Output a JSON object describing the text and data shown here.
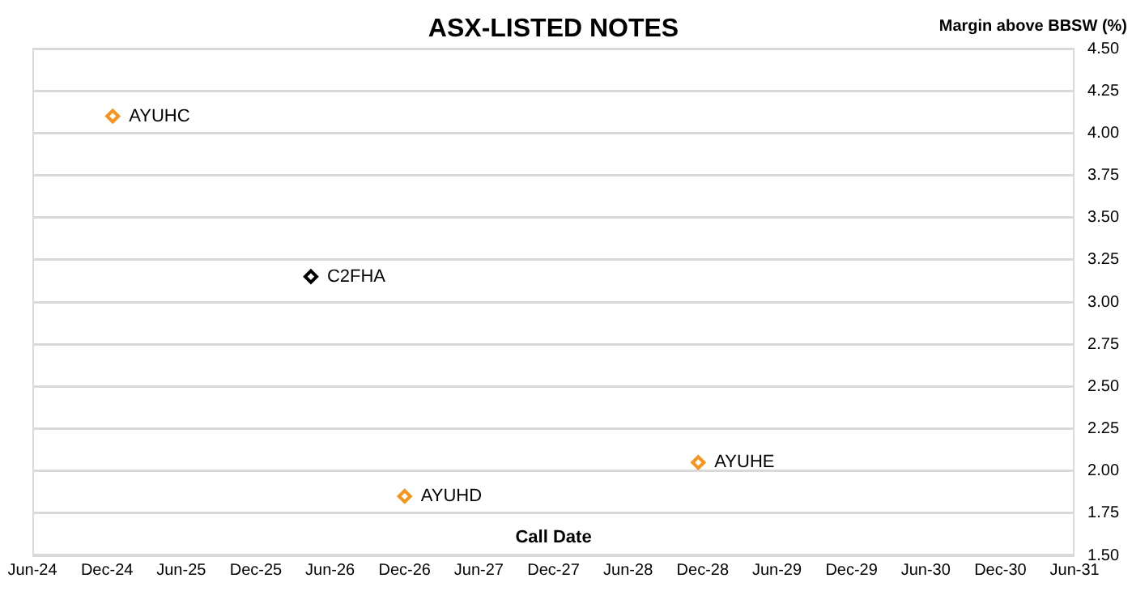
{
  "chart_data": {
    "type": "scatter",
    "title": "ASX-LISTED NOTES",
    "xlabel": "Call Date",
    "ylabel": "Margin above BBSW (%)",
    "series": [
      {
        "name": "AYUHC",
        "color": "#f7941d",
        "x": [
          "2024-12-15"
        ],
        "values": [
          4.1
        ]
      },
      {
        "name": "C2FHA",
        "color": "#000000",
        "x": [
          "2026-04-15"
        ],
        "values": [
          3.15
        ]
      },
      {
        "name": "AYUHD",
        "color": "#f7941d",
        "x": [
          "2026-12-01"
        ],
        "values": [
          1.85
        ]
      },
      {
        "name": "AYUHE",
        "color": "#f7941d",
        "x": [
          "2028-11-20"
        ],
        "values": [
          2.05
        ]
      }
    ],
    "xlim": [
      "2024-06-01",
      "2031-06-01"
    ],
    "xticks": [
      {
        "value": "2024-06-01",
        "label": "Jun-24"
      },
      {
        "value": "2024-12-01",
        "label": "Dec-24"
      },
      {
        "value": "2025-06-01",
        "label": "Jun-25"
      },
      {
        "value": "2025-12-01",
        "label": "Dec-25"
      },
      {
        "value": "2026-06-01",
        "label": "Jun-26"
      },
      {
        "value": "2026-12-01",
        "label": "Dec-26"
      },
      {
        "value": "2027-06-01",
        "label": "Jun-27"
      },
      {
        "value": "2027-12-01",
        "label": "Dec-27"
      },
      {
        "value": "2028-06-01",
        "label": "Jun-28"
      },
      {
        "value": "2028-12-01",
        "label": "Dec-28"
      },
      {
        "value": "2029-06-01",
        "label": "Jun-29"
      },
      {
        "value": "2029-12-01",
        "label": "Dec-29"
      },
      {
        "value": "2030-06-01",
        "label": "Jun-30"
      },
      {
        "value": "2030-12-01",
        "label": "Dec-30"
      },
      {
        "value": "2031-06-01",
        "label": "Jun-31"
      }
    ],
    "ylim": [
      1.5,
      4.5
    ],
    "yticks": [
      {
        "value": 1.5,
        "label": "1.50"
      },
      {
        "value": 1.75,
        "label": "1.75"
      },
      {
        "value": 2,
        "label": "2.00"
      },
      {
        "value": 2.25,
        "label": "2.25"
      },
      {
        "value": 2.5,
        "label": "2.50"
      },
      {
        "value": 2.75,
        "label": "2.75"
      },
      {
        "value": 3,
        "label": "3.00"
      },
      {
        "value": 3.25,
        "label": "3.25"
      },
      {
        "value": 3.5,
        "label": "3.50"
      },
      {
        "value": 3.75,
        "label": "3.75"
      },
      {
        "value": 4,
        "label": "4.00"
      },
      {
        "value": 4.25,
        "label": "4.25"
      },
      {
        "value": 4.5,
        "label": "4.50"
      }
    ],
    "grid": "y",
    "legend": false,
    "marker": "diamond"
  }
}
